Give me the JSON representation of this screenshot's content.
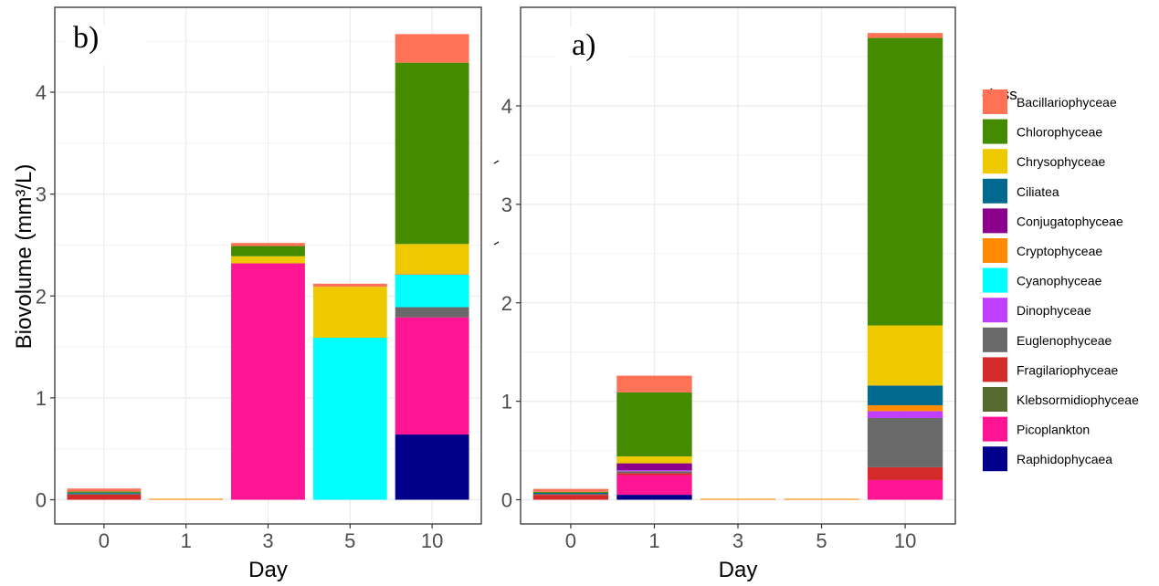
{
  "chart_data": [
    {
      "panel": "b)",
      "type": "bar",
      "stacked": true,
      "categories": [
        "0",
        "1",
        "3",
        "5",
        "10"
      ],
      "xlabel": "Day",
      "ylabel": "Biovolume (mm³/L)",
      "ylim": [
        0,
        4.6
      ],
      "yticks": [
        0,
        1,
        2,
        3,
        4
      ],
      "grid": true,
      "series": [
        {
          "name": "Raphidophycaea",
          "values": [
            0,
            0,
            0,
            0,
            0.64
          ]
        },
        {
          "name": "Picoplankton",
          "values": [
            0,
            0,
            2.32,
            0,
            1.15
          ]
        },
        {
          "name": "Klebsormidiophyceae",
          "values": [
            0,
            0,
            0,
            0,
            0
          ]
        },
        {
          "name": "Fragilariophyceae",
          "values": [
            0.05,
            0,
            0,
            0,
            0
          ]
        },
        {
          "name": "Euglenophyceae",
          "values": [
            0.01,
            0,
            0,
            0,
            0.1
          ]
        },
        {
          "name": "Dinophyceae",
          "values": [
            0,
            0,
            0,
            0,
            0
          ]
        },
        {
          "name": "Cyanophyceae",
          "values": [
            0,
            0,
            0,
            1.59,
            0.32
          ]
        },
        {
          "name": "Cryptophyceae",
          "values": [
            0,
            0.01,
            0,
            0,
            0.01
          ]
        },
        {
          "name": "Conjugatophyceae",
          "values": [
            0,
            0,
            0,
            0,
            0
          ]
        },
        {
          "name": "Ciliatea",
          "values": [
            0.01,
            0,
            0,
            0,
            0
          ]
        },
        {
          "name": "Chrysophyceae",
          "values": [
            0,
            0,
            0.07,
            0.5,
            0.29
          ]
        },
        {
          "name": "Chlorophyceae",
          "values": [
            0.01,
            0,
            0.1,
            0,
            1.78
          ]
        },
        {
          "name": "Bacillariophyceae",
          "values": [
            0.03,
            0,
            0.03,
            0.03,
            0.28
          ]
        }
      ]
    },
    {
      "panel": "a)",
      "type": "bar",
      "stacked": true,
      "categories": [
        "0",
        "1",
        "3",
        "5",
        "10"
      ],
      "xlabel": "Day",
      "ylabel": "",
      "ylim": [
        0,
        4.75
      ],
      "yticks": [
        0,
        1,
        2,
        3,
        4
      ],
      "grid": true,
      "series": [
        {
          "name": "Raphidophycaea",
          "values": [
            0,
            0.05,
            0,
            0,
            0
          ]
        },
        {
          "name": "Picoplankton",
          "values": [
            0,
            0.2,
            0,
            0,
            0.2
          ]
        },
        {
          "name": "Klebsormidiophyceae",
          "values": [
            0,
            0,
            0,
            0,
            0
          ]
        },
        {
          "name": "Fragilariophyceae",
          "values": [
            0.05,
            0.02,
            0,
            0,
            0.13
          ]
        },
        {
          "name": "Euglenophyceae",
          "values": [
            0.01,
            0.02,
            0,
            0,
            0.5
          ]
        },
        {
          "name": "Dinophyceae",
          "values": [
            0,
            0.01,
            0,
            0,
            0.07
          ]
        },
        {
          "name": "Cyanophyceae",
          "values": [
            0,
            0,
            0,
            0,
            0
          ]
        },
        {
          "name": "Cryptophyceae",
          "values": [
            0,
            0,
            0.01,
            0.01,
            0.06
          ]
        },
        {
          "name": "Conjugatophyceae",
          "values": [
            0,
            0.07,
            0,
            0,
            0
          ]
        },
        {
          "name": "Ciliatea",
          "values": [
            0.01,
            0,
            0,
            0,
            0.2
          ]
        },
        {
          "name": "Chrysophyceae",
          "values": [
            0,
            0.07,
            0,
            0,
            0.61
          ]
        },
        {
          "name": "Chlorophyceae",
          "values": [
            0.01,
            0.65,
            0,
            0,
            2.92
          ]
        },
        {
          "name": "Bacillariophyceae",
          "values": [
            0.03,
            0.17,
            0,
            0,
            0.05
          ]
        }
      ]
    }
  ],
  "legend": {
    "title": "class",
    "items": [
      {
        "name": "Bacillariophyceae",
        "color": "#FF7256"
      },
      {
        "name": "Chlorophyceae",
        "color": "#458B00"
      },
      {
        "name": "Chrysophyceae",
        "color": "#EEC900"
      },
      {
        "name": "Ciliatea",
        "color": "#006A8E"
      },
      {
        "name": "Conjugatophyceae",
        "color": "#8B008B"
      },
      {
        "name": "Cryptophyceae",
        "color": "#FF8C00"
      },
      {
        "name": "Cyanophyceae",
        "color": "#00FFFF"
      },
      {
        "name": "Dinophyceae",
        "color": "#BF3EFF"
      },
      {
        "name": "Euglenophyceae",
        "color": "#696969"
      },
      {
        "name": "Fragilariophyceae",
        "color": "#D42A2A"
      },
      {
        "name": "Klebsormidiophyceae",
        "color": "#556B2F"
      },
      {
        "name": "Picoplankton",
        "color": "#FF1493"
      },
      {
        "name": "Raphidophycaea",
        "color": "#00008B"
      }
    ]
  }
}
